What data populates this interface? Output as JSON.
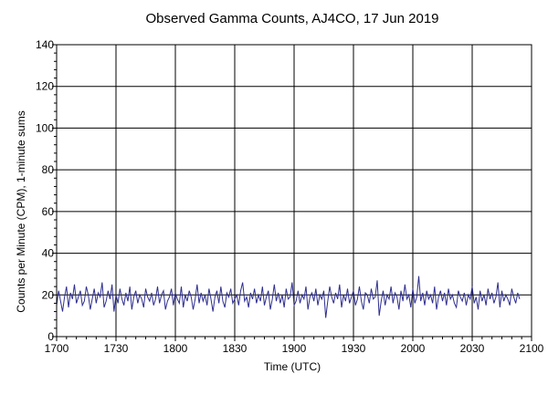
{
  "chart_data": {
    "type": "line",
    "title": "Observed Gamma Counts, AJ4CO, 17 Jun 2019",
    "xlabel": "Time (UTC)",
    "ylabel": "Counts per Minute (CPM), 1-minute sums",
    "xlim": [
      "17:00",
      "21:00"
    ],
    "ylim": [
      0,
      140
    ],
    "x_tick_labels": [
      "1700",
      "1730",
      "1800",
      "1830",
      "1900",
      "1930",
      "2000",
      "2030",
      "2100"
    ],
    "y_tick_labels": [
      "0",
      "20",
      "40",
      "60",
      "80",
      "100",
      "120",
      "140"
    ],
    "grid": true,
    "series_color": "#2e2e8f",
    "x_start": "17:00",
    "x_step_minutes": 1,
    "series": [
      {
        "values": [
          15,
          22,
          17,
          12,
          19,
          24,
          14,
          21,
          18,
          25,
          16,
          19,
          22,
          15,
          17,
          24,
          20,
          13,
          18,
          23,
          16,
          21,
          19,
          26,
          14,
          17,
          22,
          18,
          25,
          12,
          20,
          16,
          23,
          18,
          15,
          21,
          17,
          24,
          13,
          19,
          22,
          16,
          20,
          18,
          14,
          23,
          19,
          17,
          21,
          15,
          18,
          24,
          16,
          20,
          22,
          13,
          17,
          19,
          23,
          15,
          21,
          18,
          16,
          24,
          14,
          20,
          17,
          22,
          19,
          13,
          18,
          25,
          16,
          21,
          17,
          20,
          15,
          23,
          18,
          12,
          19,
          22,
          16,
          24,
          17,
          14,
          21,
          19,
          23,
          16,
          18,
          20,
          15,
          22,
          26,
          17,
          19,
          14,
          21,
          18,
          23,
          16,
          20,
          17,
          24,
          15,
          19,
          22,
          13,
          18,
          25,
          17,
          21,
          16,
          20,
          14,
          23,
          18,
          19,
          26,
          15,
          17,
          22,
          16,
          20,
          18,
          24,
          13,
          19,
          21,
          17,
          23,
          15,
          20,
          18,
          22,
          9,
          17,
          24,
          19,
          16,
          21,
          18,
          25,
          14,
          20,
          17,
          23,
          16,
          19,
          22,
          15,
          18,
          24,
          17,
          13,
          21,
          20,
          16,
          23,
          18,
          19,
          27,
          10,
          17,
          22,
          15,
          20,
          18,
          24,
          16,
          21,
          19,
          13,
          22,
          17,
          25,
          18,
          20,
          14,
          23,
          16,
          19,
          29,
          17,
          21,
          15,
          22,
          18,
          20,
          16,
          24,
          13,
          19,
          22,
          17,
          21,
          15,
          23,
          18,
          20,
          16,
          14,
          22,
          19,
          17,
          21,
          15,
          20,
          18,
          24,
          16,
          19,
          13,
          22,
          17,
          20,
          15,
          23,
          18,
          21,
          16,
          19,
          26,
          14,
          22,
          17,
          20,
          18,
          15,
          23,
          19,
          16,
          21,
          18
        ]
      }
    ]
  }
}
